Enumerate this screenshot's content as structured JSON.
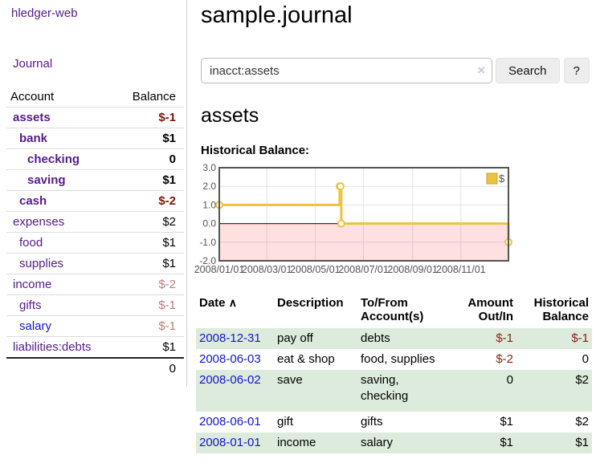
{
  "sidebar": {
    "brand": "hledger-web",
    "journal_label": "Journal",
    "accounts_table": {
      "headers": {
        "account": "Account",
        "balance": "Balance"
      },
      "rows": [
        {
          "name": "assets",
          "balance": "$-1",
          "depth": 1,
          "matched": true
        },
        {
          "name": "bank",
          "balance": "$1",
          "depth": 2,
          "matched": true
        },
        {
          "name": "checking",
          "balance": "0",
          "depth": 3,
          "matched": true
        },
        {
          "name": "saving",
          "balance": "$1",
          "depth": 3,
          "matched": true
        },
        {
          "name": "cash",
          "balance": "$-2",
          "depth": 2,
          "matched": true
        },
        {
          "name": "expenses",
          "balance": "$2",
          "depth": 1,
          "matched": false
        },
        {
          "name": "food",
          "balance": "$1",
          "depth": 2,
          "matched": false
        },
        {
          "name": "supplies",
          "balance": "$1",
          "depth": 2,
          "matched": false
        },
        {
          "name": "income",
          "balance": "$-2",
          "depth": 1,
          "matched": false
        },
        {
          "name": "gifts",
          "balance": "$-1",
          "depth": 2,
          "matched": false
        },
        {
          "name": "salary",
          "balance": "$-1",
          "depth": 2,
          "matched": false
        },
        {
          "name": "liabilities:debts",
          "balance": "$1",
          "depth": 1,
          "matched": false
        }
      ],
      "total": "0"
    }
  },
  "header": {
    "title": "sample.journal"
  },
  "search": {
    "query": "inacct:assets",
    "clear_icon": "×",
    "button_label": "Search",
    "help_label": "?"
  },
  "report": {
    "heading": "assets",
    "chart_label": "Historical Balance:"
  },
  "chart_data": {
    "type": "line",
    "step": true,
    "title": "Historical Balance:",
    "x_ticks": [
      "2008/01/01",
      "2008/03/01",
      "2008/05/01",
      "2008/07/01",
      "2008/09/01",
      "2008/11/01"
    ],
    "y_ticks": [
      "3.0",
      "2.0",
      "1.0",
      "0.0",
      "-1.0",
      "-2.0"
    ],
    "xlim": [
      "2008/01/01",
      "2008/12/31"
    ],
    "ylim": [
      -2,
      3
    ],
    "grid": true,
    "legend": {
      "label": "$",
      "position": "top-right"
    },
    "series": [
      {
        "name": "$",
        "color": "#edc240",
        "points": [
          [
            "2008/01/01",
            1
          ],
          [
            "2008/06/01",
            2
          ],
          [
            "2008/06/02",
            2
          ],
          [
            "2008/06/03",
            0
          ],
          [
            "2008/12/31",
            -1
          ]
        ]
      }
    ],
    "negative_region_fill": "rgba(255,0,0,0.12)",
    "zero_line_color": "#aa0000"
  },
  "register": {
    "sort_icon": "∧",
    "headers": {
      "date": "Date",
      "description": "Description",
      "accounts": "To/From Account(s)",
      "amount": "Amount Out/In",
      "balance": "Historical Balance"
    },
    "rows": [
      {
        "date": "2008-12-31",
        "description": "pay off",
        "accounts": "debts",
        "amount": "$-1",
        "balance": "$-1"
      },
      {
        "date": "2008-06-03",
        "description": "eat & shop",
        "accounts": "food, supplies",
        "amount": "$-2",
        "balance": "0"
      },
      {
        "date": "2008-06-02",
        "description": "save",
        "accounts": "saving, checking",
        "amount": "0",
        "balance": "$2"
      },
      {
        "date": "2008-06-01",
        "description": "gift",
        "accounts": "gifts",
        "amount": "$1",
        "balance": "$2"
      },
      {
        "date": "2008-01-01",
        "description": "income",
        "accounts": "salary",
        "amount": "$1",
        "balance": "$1"
      }
    ]
  },
  "colors": {
    "link_purple": "#541b8b",
    "link_blue": "#1414cc",
    "negative_strong": "#7f1508",
    "negative_muted": "#bf7b76",
    "row_stripe_green": "#dcebdc",
    "series_gold": "#edc240",
    "chart_border": "#545454"
  }
}
